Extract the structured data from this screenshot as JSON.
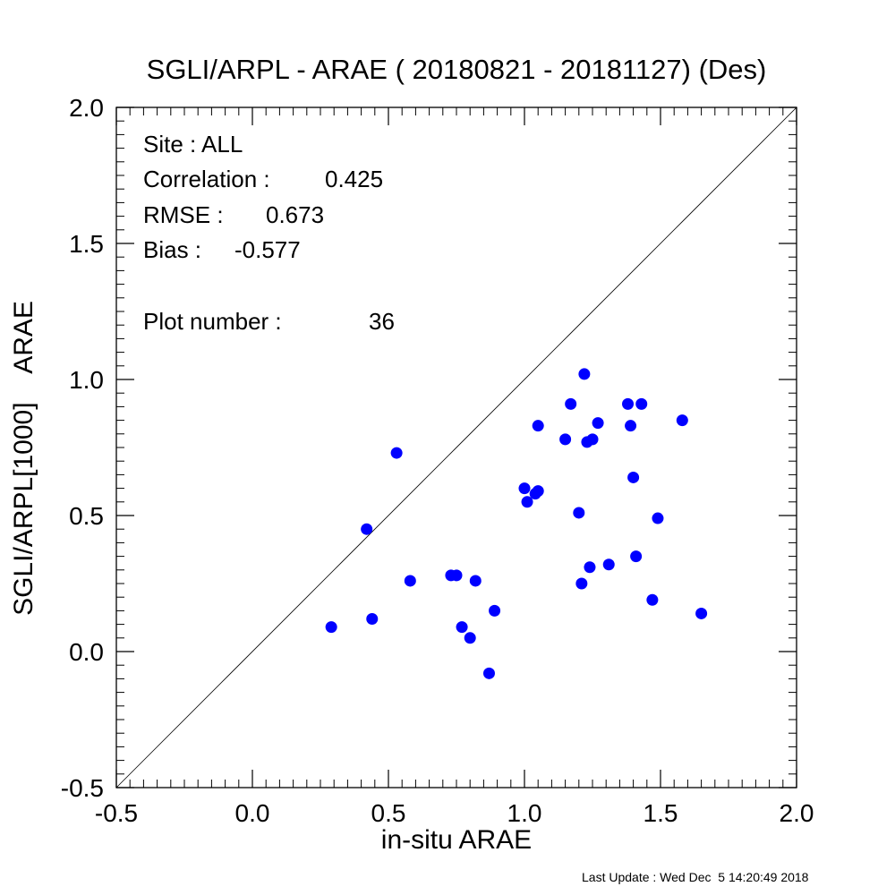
{
  "chart_data": {
    "type": "scatter",
    "title": "SGLI/ARPL - ARAE ( 20180821 - 20181127) (Des)",
    "xlabel": "in-situ ARAE",
    "ylabel": "SGLI/ARPL[1000]    ARAE",
    "xlim": [
      -0.5,
      2.0
    ],
    "ylim": [
      -0.5,
      2.0
    ],
    "x_ticks": [
      "-0.5",
      "0.0",
      "0.5",
      "1.0",
      "1.5",
      "2.0"
    ],
    "y_ticks": [
      "-0.5",
      "0.0",
      "0.5",
      "1.0",
      "1.5",
      "2.0"
    ],
    "reference_line": "1:1",
    "grid": false,
    "point_color": "#0000ff",
    "stats": {
      "site": "Site : ALL",
      "correlation_label": "Correlation :",
      "correlation": "0.425",
      "rmse_label": "RMSE :",
      "rmse": "0.673",
      "bias_label": "Bias :",
      "bias": "-0.577",
      "plot_number_label": "Plot number :",
      "plot_number": "36"
    },
    "points": [
      [
        0.29,
        0.09
      ],
      [
        0.42,
        0.45
      ],
      [
        0.44,
        0.12
      ],
      [
        0.53,
        0.73
      ],
      [
        0.58,
        0.26
      ],
      [
        0.73,
        0.28
      ],
      [
        0.75,
        0.28
      ],
      [
        0.77,
        0.09
      ],
      [
        0.8,
        0.05
      ],
      [
        0.82,
        0.26
      ],
      [
        0.87,
        -0.08
      ],
      [
        0.89,
        0.15
      ],
      [
        1.0,
        0.6
      ],
      [
        1.01,
        0.55
      ],
      [
        1.04,
        0.58
      ],
      [
        1.05,
        0.59
      ],
      [
        1.05,
        0.83
      ],
      [
        1.15,
        0.78
      ],
      [
        1.17,
        0.91
      ],
      [
        1.2,
        0.51
      ],
      [
        1.21,
        0.25
      ],
      [
        1.22,
        1.02
      ],
      [
        1.23,
        0.77
      ],
      [
        1.24,
        0.31
      ],
      [
        1.25,
        0.78
      ],
      [
        1.27,
        0.84
      ],
      [
        1.31,
        0.32
      ],
      [
        1.38,
        0.91
      ],
      [
        1.39,
        0.83
      ],
      [
        1.4,
        0.64
      ],
      [
        1.41,
        0.35
      ],
      [
        1.43,
        0.91
      ],
      [
        1.47,
        0.19
      ],
      [
        1.49,
        0.49
      ],
      [
        1.58,
        0.85
      ],
      [
        1.65,
        0.14
      ]
    ]
  },
  "footer": {
    "last_update": "Last Update : Wed Dec  5 14:20:49 2018"
  }
}
